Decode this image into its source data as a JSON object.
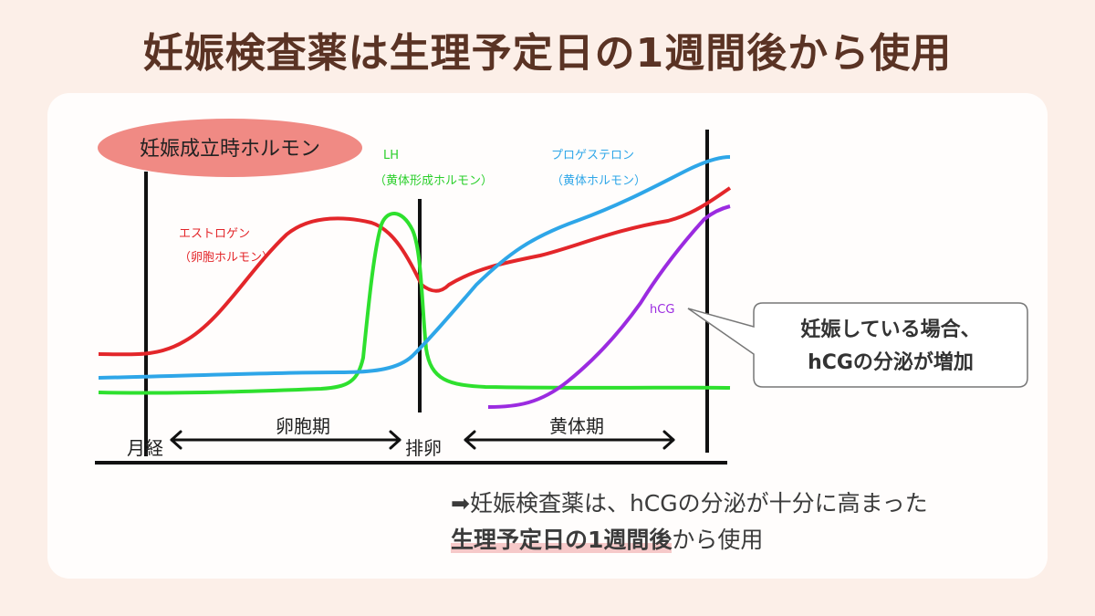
{
  "title": "妊娠検査薬は生理予定日の1週間後から使用",
  "diagram": {
    "header_badge": "妊娠成立時ホルモン",
    "labels": {
      "lh": "LH",
      "lh_sub": "（黄体形成ホルモン）",
      "progesterone": "プロゲステロン",
      "progesterone_sub": "（黄体ホルモン）",
      "estrogen": "エストロゲン",
      "estrogen_sub": "（卵胞ホルモン）",
      "hcg": "hCG"
    },
    "phases": {
      "menstruation": "月経",
      "follicular": "卵胞期",
      "ovulation": "排卵",
      "luteal": "黄体期"
    },
    "callout": {
      "line1": "妊娠している場合、",
      "line2": "hCGの分泌が増加"
    },
    "colors": {
      "estrogen": "#e3262a",
      "lh": "#2ee02e",
      "progesterone": "#2ea6e8",
      "hcg": "#9b2be0",
      "badge": "#f08a84"
    }
  },
  "note": {
    "arrow": "➡",
    "line1": "妊娠検査薬は、hCGの分泌が十分に高まった",
    "line2_highlight": "生理予定日の1週間後",
    "line2_rest": "から使用"
  }
}
